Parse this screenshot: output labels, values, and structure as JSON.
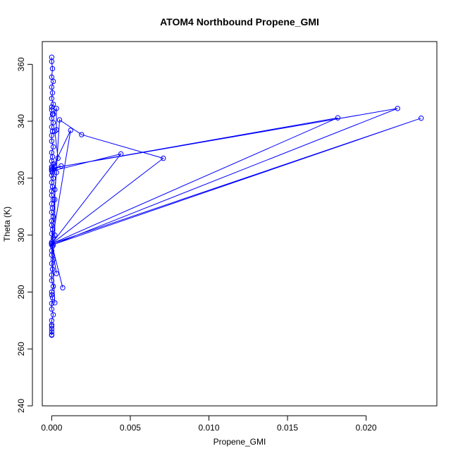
{
  "chart_data": {
    "type": "line",
    "title": "ATOM4 Northbound Propene_GMI",
    "xlabel": "Propene_GMI",
    "ylabel": "Theta (K)",
    "xlim": [
      -0.0006,
      0.0245
    ],
    "ylim": [
      240,
      368
    ],
    "x_ticks": [
      0.0,
      0.005,
      0.01,
      0.015,
      0.02
    ],
    "x_tick_labels": [
      "0.000",
      "0.005",
      "0.010",
      "0.015",
      "0.020"
    ],
    "y_ticks": [
      240,
      260,
      280,
      300,
      320,
      340,
      360
    ],
    "y_tick_labels": [
      "240",
      "260",
      "280",
      "300",
      "320",
      "340",
      "360"
    ],
    "grid": false,
    "legend": "none",
    "series_color": "#0000ff",
    "marker": "open-circle",
    "series": [
      {
        "x": [
          0.0,
          0.0,
          5e-05,
          0.0,
          0.0001,
          0.0,
          5e-05,
          0.0,
          0.0001,
          0.0,
          0.0,
          5e-05,
          0.0,
          0.0001,
          0.0,
          5e-05,
          0.0,
          0.0,
          0.0001,
          0.0,
          5e-05,
          0.0,
          0.0001,
          0.0,
          0.0,
          5e-05,
          0.0,
          0.0001,
          0.0,
          5e-05,
          0.0,
          0.0,
          0.0001,
          0.0,
          5e-05,
          0.0,
          0.0001,
          0.0,
          0.0,
          5e-05,
          0.0,
          0.0001,
          0.0,
          5e-05,
          0.0,
          0.0,
          0.0001,
          0.0,
          5e-05,
          0.0,
          0.0,
          0.0001,
          0.0,
          0.0,
          5e-05,
          0.0,
          0.0,
          0.0001,
          0.0,
          0.0,
          0.0,
          0.0,
          0.0,
          0.0,
          0.0
        ],
        "y": [
          362.5,
          361,
          358.5,
          355.5,
          354,
          352,
          350,
          348,
          346,
          345,
          344,
          342.5,
          341,
          339.5,
          338,
          336.5,
          335,
          333,
          331,
          329,
          327.5,
          326,
          325,
          324,
          323,
          322,
          321,
          320,
          318.5,
          317,
          315.5,
          314,
          312.5,
          311,
          309.5,
          308,
          306.5,
          305,
          303.5,
          302,
          300.5,
          299,
          297.5,
          296,
          294.5,
          293,
          291.5,
          290,
          288,
          286,
          284,
          282,
          280,
          279,
          278,
          276,
          274,
          272,
          270,
          268.5,
          268,
          267,
          266,
          265,
          264.8
        ]
      },
      {
        "x": [
          0.0001,
          0.0003,
          0.0003,
          0.0002,
          0.0004,
          0.0002,
          0.0003,
          0.0002,
          0.0002,
          0.0002,
          0.0001
        ],
        "y": [
          342.5,
          344.5,
          337,
          336.5,
          327,
          324,
          322,
          316,
          312.5,
          300,
          296.5
        ]
      },
      {
        "x": [
          0.0,
          0.0005,
          0.0019,
          0.0071,
          0.0,
          0.0012,
          0.0,
          0.0006,
          0.0,
          0.0044,
          0.0,
          0.0182,
          0.0,
          0.022,
          0.0,
          0.0235,
          0.0,
          0.0007,
          0.0,
          0.0002,
          0.0,
          0.0003,
          0.0
        ],
        "y": [
          297,
          340.5,
          335.3,
          327,
          297,
          336.8,
          323,
          324.3,
          322.5,
          328.5,
          297,
          341.2,
          323.5,
          344.5,
          296.5,
          341.1,
          297,
          281.5,
          297,
          276.2,
          297,
          286.5,
          297
        ]
      }
    ]
  }
}
